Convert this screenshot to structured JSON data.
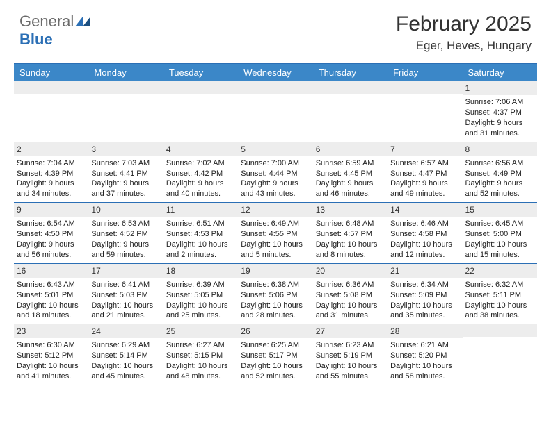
{
  "logo": {
    "text_gray": "General",
    "text_blue": "Blue"
  },
  "title": "February 2025",
  "location": "Eger, Heves, Hungary",
  "colors": {
    "header_bar": "#3b87c8",
    "accent_line": "#2b6fb5",
    "day_number_bg": "#ededed",
    "logo_gray": "#6b6b6b",
    "logo_blue": "#2b6fb5",
    "text": "#333333",
    "background": "#ffffff"
  },
  "weekdays": [
    "Sunday",
    "Monday",
    "Tuesday",
    "Wednesday",
    "Thursday",
    "Friday",
    "Saturday"
  ],
  "weeks": [
    [
      {
        "n": "",
        "sunrise": "",
        "sunset": "",
        "daylight": ""
      },
      {
        "n": "",
        "sunrise": "",
        "sunset": "",
        "daylight": ""
      },
      {
        "n": "",
        "sunrise": "",
        "sunset": "",
        "daylight": ""
      },
      {
        "n": "",
        "sunrise": "",
        "sunset": "",
        "daylight": ""
      },
      {
        "n": "",
        "sunrise": "",
        "sunset": "",
        "daylight": ""
      },
      {
        "n": "",
        "sunrise": "",
        "sunset": "",
        "daylight": ""
      },
      {
        "n": "1",
        "sunrise": "Sunrise: 7:06 AM",
        "sunset": "Sunset: 4:37 PM",
        "daylight": "Daylight: 9 hours and 31 minutes."
      }
    ],
    [
      {
        "n": "2",
        "sunrise": "Sunrise: 7:04 AM",
        "sunset": "Sunset: 4:39 PM",
        "daylight": "Daylight: 9 hours and 34 minutes."
      },
      {
        "n": "3",
        "sunrise": "Sunrise: 7:03 AM",
        "sunset": "Sunset: 4:41 PM",
        "daylight": "Daylight: 9 hours and 37 minutes."
      },
      {
        "n": "4",
        "sunrise": "Sunrise: 7:02 AM",
        "sunset": "Sunset: 4:42 PM",
        "daylight": "Daylight: 9 hours and 40 minutes."
      },
      {
        "n": "5",
        "sunrise": "Sunrise: 7:00 AM",
        "sunset": "Sunset: 4:44 PM",
        "daylight": "Daylight: 9 hours and 43 minutes."
      },
      {
        "n": "6",
        "sunrise": "Sunrise: 6:59 AM",
        "sunset": "Sunset: 4:45 PM",
        "daylight": "Daylight: 9 hours and 46 minutes."
      },
      {
        "n": "7",
        "sunrise": "Sunrise: 6:57 AM",
        "sunset": "Sunset: 4:47 PM",
        "daylight": "Daylight: 9 hours and 49 minutes."
      },
      {
        "n": "8",
        "sunrise": "Sunrise: 6:56 AM",
        "sunset": "Sunset: 4:49 PM",
        "daylight": "Daylight: 9 hours and 52 minutes."
      }
    ],
    [
      {
        "n": "9",
        "sunrise": "Sunrise: 6:54 AM",
        "sunset": "Sunset: 4:50 PM",
        "daylight": "Daylight: 9 hours and 56 minutes."
      },
      {
        "n": "10",
        "sunrise": "Sunrise: 6:53 AM",
        "sunset": "Sunset: 4:52 PM",
        "daylight": "Daylight: 9 hours and 59 minutes."
      },
      {
        "n": "11",
        "sunrise": "Sunrise: 6:51 AM",
        "sunset": "Sunset: 4:53 PM",
        "daylight": "Daylight: 10 hours and 2 minutes."
      },
      {
        "n": "12",
        "sunrise": "Sunrise: 6:49 AM",
        "sunset": "Sunset: 4:55 PM",
        "daylight": "Daylight: 10 hours and 5 minutes."
      },
      {
        "n": "13",
        "sunrise": "Sunrise: 6:48 AM",
        "sunset": "Sunset: 4:57 PM",
        "daylight": "Daylight: 10 hours and 8 minutes."
      },
      {
        "n": "14",
        "sunrise": "Sunrise: 6:46 AM",
        "sunset": "Sunset: 4:58 PM",
        "daylight": "Daylight: 10 hours and 12 minutes."
      },
      {
        "n": "15",
        "sunrise": "Sunrise: 6:45 AM",
        "sunset": "Sunset: 5:00 PM",
        "daylight": "Daylight: 10 hours and 15 minutes."
      }
    ],
    [
      {
        "n": "16",
        "sunrise": "Sunrise: 6:43 AM",
        "sunset": "Sunset: 5:01 PM",
        "daylight": "Daylight: 10 hours and 18 minutes."
      },
      {
        "n": "17",
        "sunrise": "Sunrise: 6:41 AM",
        "sunset": "Sunset: 5:03 PM",
        "daylight": "Daylight: 10 hours and 21 minutes."
      },
      {
        "n": "18",
        "sunrise": "Sunrise: 6:39 AM",
        "sunset": "Sunset: 5:05 PM",
        "daylight": "Daylight: 10 hours and 25 minutes."
      },
      {
        "n": "19",
        "sunrise": "Sunrise: 6:38 AM",
        "sunset": "Sunset: 5:06 PM",
        "daylight": "Daylight: 10 hours and 28 minutes."
      },
      {
        "n": "20",
        "sunrise": "Sunrise: 6:36 AM",
        "sunset": "Sunset: 5:08 PM",
        "daylight": "Daylight: 10 hours and 31 minutes."
      },
      {
        "n": "21",
        "sunrise": "Sunrise: 6:34 AM",
        "sunset": "Sunset: 5:09 PM",
        "daylight": "Daylight: 10 hours and 35 minutes."
      },
      {
        "n": "22",
        "sunrise": "Sunrise: 6:32 AM",
        "sunset": "Sunset: 5:11 PM",
        "daylight": "Daylight: 10 hours and 38 minutes."
      }
    ],
    [
      {
        "n": "23",
        "sunrise": "Sunrise: 6:30 AM",
        "sunset": "Sunset: 5:12 PM",
        "daylight": "Daylight: 10 hours and 41 minutes."
      },
      {
        "n": "24",
        "sunrise": "Sunrise: 6:29 AM",
        "sunset": "Sunset: 5:14 PM",
        "daylight": "Daylight: 10 hours and 45 minutes."
      },
      {
        "n": "25",
        "sunrise": "Sunrise: 6:27 AM",
        "sunset": "Sunset: 5:15 PM",
        "daylight": "Daylight: 10 hours and 48 minutes."
      },
      {
        "n": "26",
        "sunrise": "Sunrise: 6:25 AM",
        "sunset": "Sunset: 5:17 PM",
        "daylight": "Daylight: 10 hours and 52 minutes."
      },
      {
        "n": "27",
        "sunrise": "Sunrise: 6:23 AM",
        "sunset": "Sunset: 5:19 PM",
        "daylight": "Daylight: 10 hours and 55 minutes."
      },
      {
        "n": "28",
        "sunrise": "Sunrise: 6:21 AM",
        "sunset": "Sunset: 5:20 PM",
        "daylight": "Daylight: 10 hours and 58 minutes."
      },
      {
        "n": "",
        "sunrise": "",
        "sunset": "",
        "daylight": ""
      }
    ]
  ]
}
